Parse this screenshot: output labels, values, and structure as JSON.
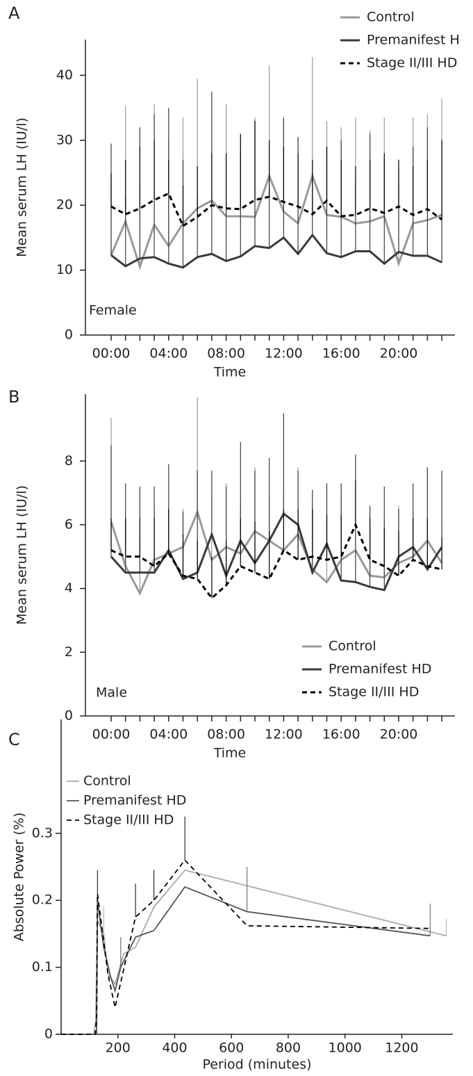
{
  "chart_data": [
    {
      "type": "line",
      "panel_label": "A",
      "annotation": "Female",
      "xlabel": "Time",
      "ylabel": "Mean serum LH (IU/l)",
      "categories": [
        "00:00",
        null,
        null,
        null,
        "04:00",
        null,
        null,
        null,
        "08:00",
        null,
        null,
        null,
        "12:00",
        null,
        null,
        null,
        "16:00",
        null,
        null,
        null,
        "20:00",
        null,
        null,
        null
      ],
      "ylim": [
        0,
        45.5
      ],
      "yticks": [
        0,
        10,
        20,
        30,
        40
      ],
      "legend_position": "top-right",
      "series": [
        {
          "name": "Control",
          "color": "#999999",
          "dash": false,
          "values": [
            12.3,
            17.5,
            10.5,
            17,
            13.7,
            17.2,
            19.5,
            20.7,
            18.3,
            18.3,
            18.2,
            24.5,
            19,
            17.2,
            24.5,
            18.5,
            18.2,
            17.2,
            17.5,
            18.3,
            11,
            17.2,
            17.7,
            18.5
          ],
          "errors": [
            11.9,
            17.8,
            13,
            18.5,
            16.3,
            16.3,
            20,
            8.3,
            17.2,
            11.7,
            15.3,
            17,
            14,
            13.3,
            18.3,
            14.5,
            13.8,
            16.3,
            14,
            15.2,
            12,
            16.3,
            16.3,
            18
          ]
        },
        {
          "name": "Premanifest H",
          "color": "#3a3a3a",
          "dash": false,
          "values": [
            12.3,
            10.6,
            11.8,
            12,
            11,
            10.4,
            12,
            12.5,
            11.4,
            12.1,
            13.7,
            13.4,
            15,
            12.5,
            15.4,
            12.6,
            12,
            12.9,
            12.9,
            11,
            12.8,
            12.2,
            12.2,
            11.2
          ],
          "errors": [
            17.2,
            10.9,
            20.2,
            22,
            24,
            16.6,
            9.5,
            25,
            15.6,
            15.9,
            19.3,
            9.1,
            18.5,
            18,
            9.6,
            16.4,
            18,
            10.6,
            18.1,
            16,
            13.2,
            16.8,
            19.8,
            18.8
          ]
        },
        {
          "name": "Stage II/III HD",
          "color": "#000000",
          "dash": true,
          "values": [
            19.8,
            18.6,
            19.5,
            20.8,
            21.8,
            16.8,
            18.2,
            20,
            19.5,
            19.4,
            20.8,
            21.3,
            20.5,
            19.8,
            18.6,
            20.7,
            18.3,
            18.5,
            19.5,
            18.8,
            19.8,
            18.5,
            19.4,
            17.8
          ],
          "errors": [
            5.2,
            8.4,
            9.5,
            9.2,
            5.2,
            6.2,
            7.8,
            8,
            8.5,
            11.6,
            12.2,
            8.7,
            8.5,
            8.2,
            8.4,
            8.3,
            8.7,
            7.5,
            7.5,
            9.2,
            7.2,
            7.5,
            7.6,
            12.2
          ]
        }
      ]
    },
    {
      "type": "line",
      "panel_label": "B",
      "annotation": "Male",
      "xlabel": "Time",
      "ylabel": "Mean serum LH (IU/l)",
      "categories": [
        "00:00",
        null,
        null,
        null,
        "04:00",
        null,
        null,
        null,
        "08:00",
        null,
        null,
        null,
        "12:00",
        null,
        null,
        null,
        "16:00",
        null,
        null,
        null,
        "20:00",
        null,
        null,
        null
      ],
      "ylim": [
        0,
        10.1
      ],
      "yticks": [
        0,
        2,
        4,
        6,
        8
      ],
      "legend_position": "bottom-right",
      "series": [
        {
          "name": "Control",
          "color": "#999999",
          "dash": false,
          "values": [
            6.1,
            4.7,
            3.85,
            4.9,
            5.1,
            5.3,
            6.4,
            4.9,
            5.3,
            5.1,
            5.8,
            5.5,
            5.2,
            5.7,
            4.6,
            4.2,
            4.9,
            5.2,
            4.4,
            4.35,
            4.8,
            5.0,
            5.5,
            4.8
          ],
          "errors": [
            3.25,
            1.5,
            1.65,
            1.6,
            1.3,
            1.2,
            3.6,
            2.0,
            2.0,
            1.7,
            2.0,
            1.4,
            1.8,
            2.1,
            1.9,
            2.2,
            2.1,
            1.2,
            1.6,
            1.85,
            1.8,
            1.4,
            2.3,
            1.2
          ]
        },
        {
          "name": "Premanifest HD",
          "color": "#3a3a3a",
          "dash": false,
          "values": [
            5.0,
            4.5,
            4.5,
            4.5,
            5.2,
            4.3,
            4.5,
            5.7,
            4.4,
            5.5,
            4.8,
            5.5,
            6.35,
            6.0,
            4.5,
            5.4,
            4.25,
            4.2,
            4.05,
            3.95,
            5.0,
            5.3,
            4.6,
            5.3
          ],
          "errors": [
            3.5,
            2.8,
            2.7,
            2.7,
            2.7,
            2.1,
            3.2,
            2.0,
            2.8,
            3.1,
            2.9,
            2.6,
            3.15,
            1.7,
            2.6,
            1.9,
            3.05,
            4.0,
            2.55,
            3.25,
            1.5,
            2.0,
            3.2,
            2.4
          ]
        },
        {
          "name": "Stage II/III HD",
          "color": "#000000",
          "dash": true,
          "values": [
            5.2,
            5.0,
            5.0,
            4.7,
            5.1,
            4.4,
            4.3,
            3.7,
            4.1,
            4.7,
            4.5,
            4.3,
            5.2,
            4.9,
            5.0,
            4.9,
            5.0,
            6.0,
            4.9,
            4.7,
            4.4,
            4.9,
            4.7,
            4.6
          ],
          "errors": [
            1.0,
            1.2,
            1.2,
            1.5,
            1.4,
            1.3,
            1.2,
            1.3,
            1.4,
            1.5,
            1.6,
            1.5,
            1.3,
            1.6,
            1.5,
            1.4,
            1.3,
            1.4,
            1.3,
            1.2,
            1.4,
            1.3,
            1.5,
            1.0
          ]
        }
      ]
    },
    {
      "type": "xyline",
      "panel_label": "C",
      "xlabel": "Period (minutes)",
      "ylabel": "Absolute Power (%)",
      "xlim": [
        0,
        1380
      ],
      "xticks": [
        200,
        400,
        600,
        800,
        1000,
        1200
      ],
      "ylim": [
        0,
        0.47
      ],
      "yticks": [
        0,
        0.1,
        0.2,
        0.3
      ],
      "legend_position": "top-left",
      "series": [
        {
          "name": "Control",
          "color": "#aaaaaa",
          "dash": false,
          "x": [
            0,
            115,
            122,
            128,
            150,
            165,
            190,
            220,
            262,
            327,
            436,
            1357
          ],
          "values": [
            0,
            0,
            0.02,
            0.17,
            0.15,
            0.09,
            0.075,
            0.12,
            0.13,
            0.19,
            0.245,
            0.147
          ],
          "errors": [
            null,
            null,
            null,
            0.02,
            0.04,
            null,
            null,
            null,
            null,
            null,
            null,
            0.025
          ]
        },
        {
          "name": "Premanifest HD",
          "color": "#555555",
          "dash": false,
          "x": [
            0,
            115,
            125,
            128,
            150,
            175,
            190,
            210,
            262,
            327,
            436,
            655,
            1300
          ],
          "values": [
            0,
            0,
            0,
            0.2,
            0.13,
            0.085,
            0.065,
            0.1,
            0.145,
            0.155,
            0.22,
            0.183,
            0.147
          ],
          "errors": [
            null,
            null,
            null,
            null,
            null,
            null,
            null,
            0.045,
            null,
            null,
            null,
            0.067,
            0.048
          ]
        },
        {
          "name": "Stage II/III HD",
          "color": "#000000",
          "dash": true,
          "x": [
            0,
            120,
            125,
            128,
            165,
            190,
            262,
            327,
            436,
            655,
            1300
          ],
          "values": [
            0,
            0,
            0.025,
            0.21,
            0.09,
            0.04,
            0.175,
            0.2,
            0.26,
            0.162,
            0.158
          ],
          "errors": [
            null,
            null,
            null,
            0.035,
            null,
            null,
            0.05,
            0.045,
            0.065,
            null,
            null
          ]
        }
      ]
    }
  ]
}
